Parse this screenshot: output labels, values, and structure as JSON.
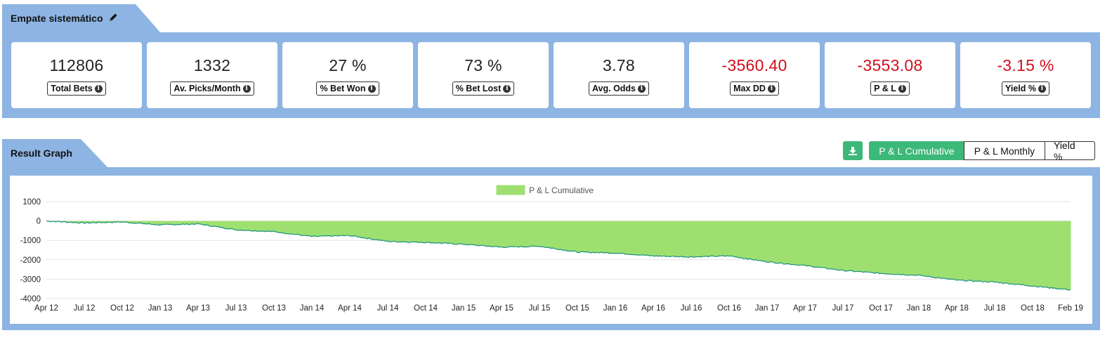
{
  "strategy": {
    "title": "Empate sistemático",
    "edit_icon": "pencil-icon"
  },
  "stats": [
    {
      "value": "112806",
      "label": "Total Bets",
      "negative": false
    },
    {
      "value": "1332",
      "label": "Av. Picks/Month",
      "negative": false
    },
    {
      "value": "27 %",
      "label": "% Bet Won",
      "negative": false
    },
    {
      "value": "73 %",
      "label": "% Bet Lost",
      "negative": false
    },
    {
      "value": "3.78",
      "label": "Avg. Odds",
      "negative": false
    },
    {
      "value": "-3560.40",
      "label": "Max DD",
      "negative": true
    },
    {
      "value": "-3553.08",
      "label": "P & L",
      "negative": true
    },
    {
      "value": "-3.15 %",
      "label": "Yield %",
      "negative": true
    }
  ],
  "graph": {
    "title": "Result Graph",
    "download_icon": "download-icon",
    "buttons": [
      {
        "label": "P & L Cumulative",
        "active": true
      },
      {
        "label": "P & L Monthly",
        "active": false
      },
      {
        "label": "Yield %",
        "active": false
      }
    ]
  },
  "colors": {
    "header_blue": "#8db4e2",
    "accent_green": "#3cb878",
    "negative_red": "#d0101c",
    "area_fill": "#9ee070",
    "line": "#1a8f80"
  },
  "chart_data": {
    "type": "area",
    "legend": "P & L Cumulative",
    "legend_position": "top-center",
    "grid": true,
    "ylim": [
      -4000,
      1000
    ],
    "yticks": [
      "1000",
      "0",
      "-1000",
      "-2000",
      "-3000",
      "-4000"
    ],
    "xticks": [
      "Apr 12",
      "Jul 12",
      "Oct 12",
      "Jan 13",
      "Apr 13",
      "Jul 13",
      "Oct 13",
      "Jan 14",
      "Apr 14",
      "Jul 14",
      "Oct 14",
      "Jan 15",
      "Apr 15",
      "Jul 15",
      "Oct 15",
      "Jan 16",
      "Apr 16",
      "Jul 16",
      "Oct 16",
      "Jan 17",
      "Apr 17",
      "Jul 17",
      "Oct 17",
      "Jan 18",
      "Apr 18",
      "Jul 18",
      "Oct 18",
      "Feb 19"
    ],
    "series": [
      {
        "name": "P & L Cumulative",
        "x": [
          "Apr 12",
          "Jul 12",
          "Oct 12",
          "Jan 13",
          "Apr 13",
          "Jul 13",
          "Oct 13",
          "Jan 14",
          "Apr 14",
          "Jul 14",
          "Oct 14",
          "Jan 15",
          "Apr 15",
          "Jul 15",
          "Oct 15",
          "Jan 16",
          "Apr 16",
          "Jul 16",
          "Oct 16",
          "Jan 17",
          "Apr 17",
          "Jul 17",
          "Oct 17",
          "Jan 18",
          "Apr 18",
          "Jul 18",
          "Oct 18",
          "Feb 19"
        ],
        "values": [
          0,
          -100,
          -50,
          -200,
          -150,
          -450,
          -550,
          -800,
          -750,
          -1050,
          -1100,
          -1200,
          -1350,
          -1300,
          -1600,
          -1650,
          -1800,
          -1850,
          -1800,
          -2100,
          -2300,
          -2550,
          -2700,
          -2800,
          -3050,
          -3150,
          -3350,
          -3550
        ]
      }
    ]
  }
}
